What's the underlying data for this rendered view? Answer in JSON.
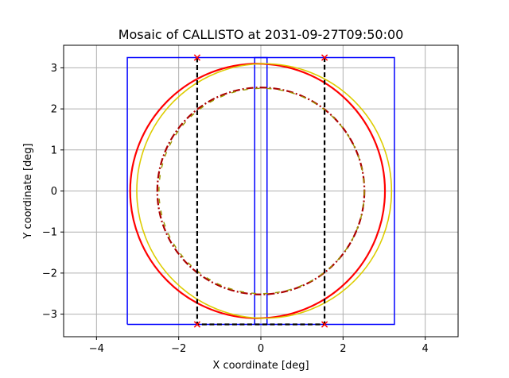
{
  "chart_data": {
    "type": "line",
    "title": "Mosaic of CALLISTO at 2031-09-27T09:50:00",
    "xlabel": "X coordinate [deg]",
    "ylabel": "Y coordinate [deg]",
    "xlim": [
      -4.8,
      4.8
    ],
    "ylim": [
      -3.55,
      3.55
    ],
    "xticks": [
      -4,
      -2,
      0,
      2,
      4
    ],
    "xtick_labels": [
      "−4",
      "−2",
      "0",
      "2",
      "4"
    ],
    "yticks": [
      -3,
      -2,
      -1,
      0,
      1,
      2,
      3
    ],
    "ytick_labels": [
      "−3",
      "−2",
      "−1",
      "0",
      "1",
      "2",
      "3"
    ],
    "grid": true,
    "colors": {
      "frame": "#0000ff",
      "disk_outer": "#ff0000",
      "disk_outer_alt": "#ddcc00",
      "disk_inner": "#aa0000",
      "disk_inner_alt": "#999900",
      "mosaic": "#000000",
      "corner_marker": "#ff0000",
      "grid": "#b0b0b0"
    },
    "series": [
      {
        "kind": "rectangle",
        "style": "solid",
        "x": [
          -3.25,
          3.25,
          3.25,
          -3.25,
          -3.25
        ],
        "y": [
          -3.25,
          -3.25,
          3.25,
          3.25,
          -3.25
        ]
      },
      {
        "kind": "rectangle",
        "style": "solid",
        "x": [
          -0.15,
          0.15,
          0.15,
          -0.15,
          -0.15
        ],
        "y": [
          -3.25,
          -3.25,
          3.25,
          3.25,
          -3.25
        ]
      },
      {
        "kind": "circle",
        "style": "solid",
        "cx": -0.08,
        "cy": 0.0,
        "r": 3.1
      },
      {
        "kind": "circle",
        "style": "solid",
        "cx": 0.08,
        "cy": 0.0,
        "r": 3.1
      },
      {
        "kind": "circle",
        "style": "dashdot",
        "cx": 0.0,
        "cy": 0.0,
        "r": 2.52
      },
      {
        "kind": "circle",
        "style": "dashdot",
        "cx": 0.02,
        "cy": 0.0,
        "r": 2.5
      },
      {
        "kind": "mosaic",
        "style": "dashed",
        "x": [
          -1.55,
          -1.55,
          1.55,
          1.55
        ],
        "y": [
          3.25,
          -3.25,
          -3.25,
          3.25
        ]
      },
      {
        "kind": "markers",
        "marker": "x",
        "x": [
          -1.55,
          1.55,
          -1.55,
          1.55
        ],
        "y": [
          3.25,
          3.25,
          -3.25,
          -3.25
        ]
      }
    ]
  }
}
